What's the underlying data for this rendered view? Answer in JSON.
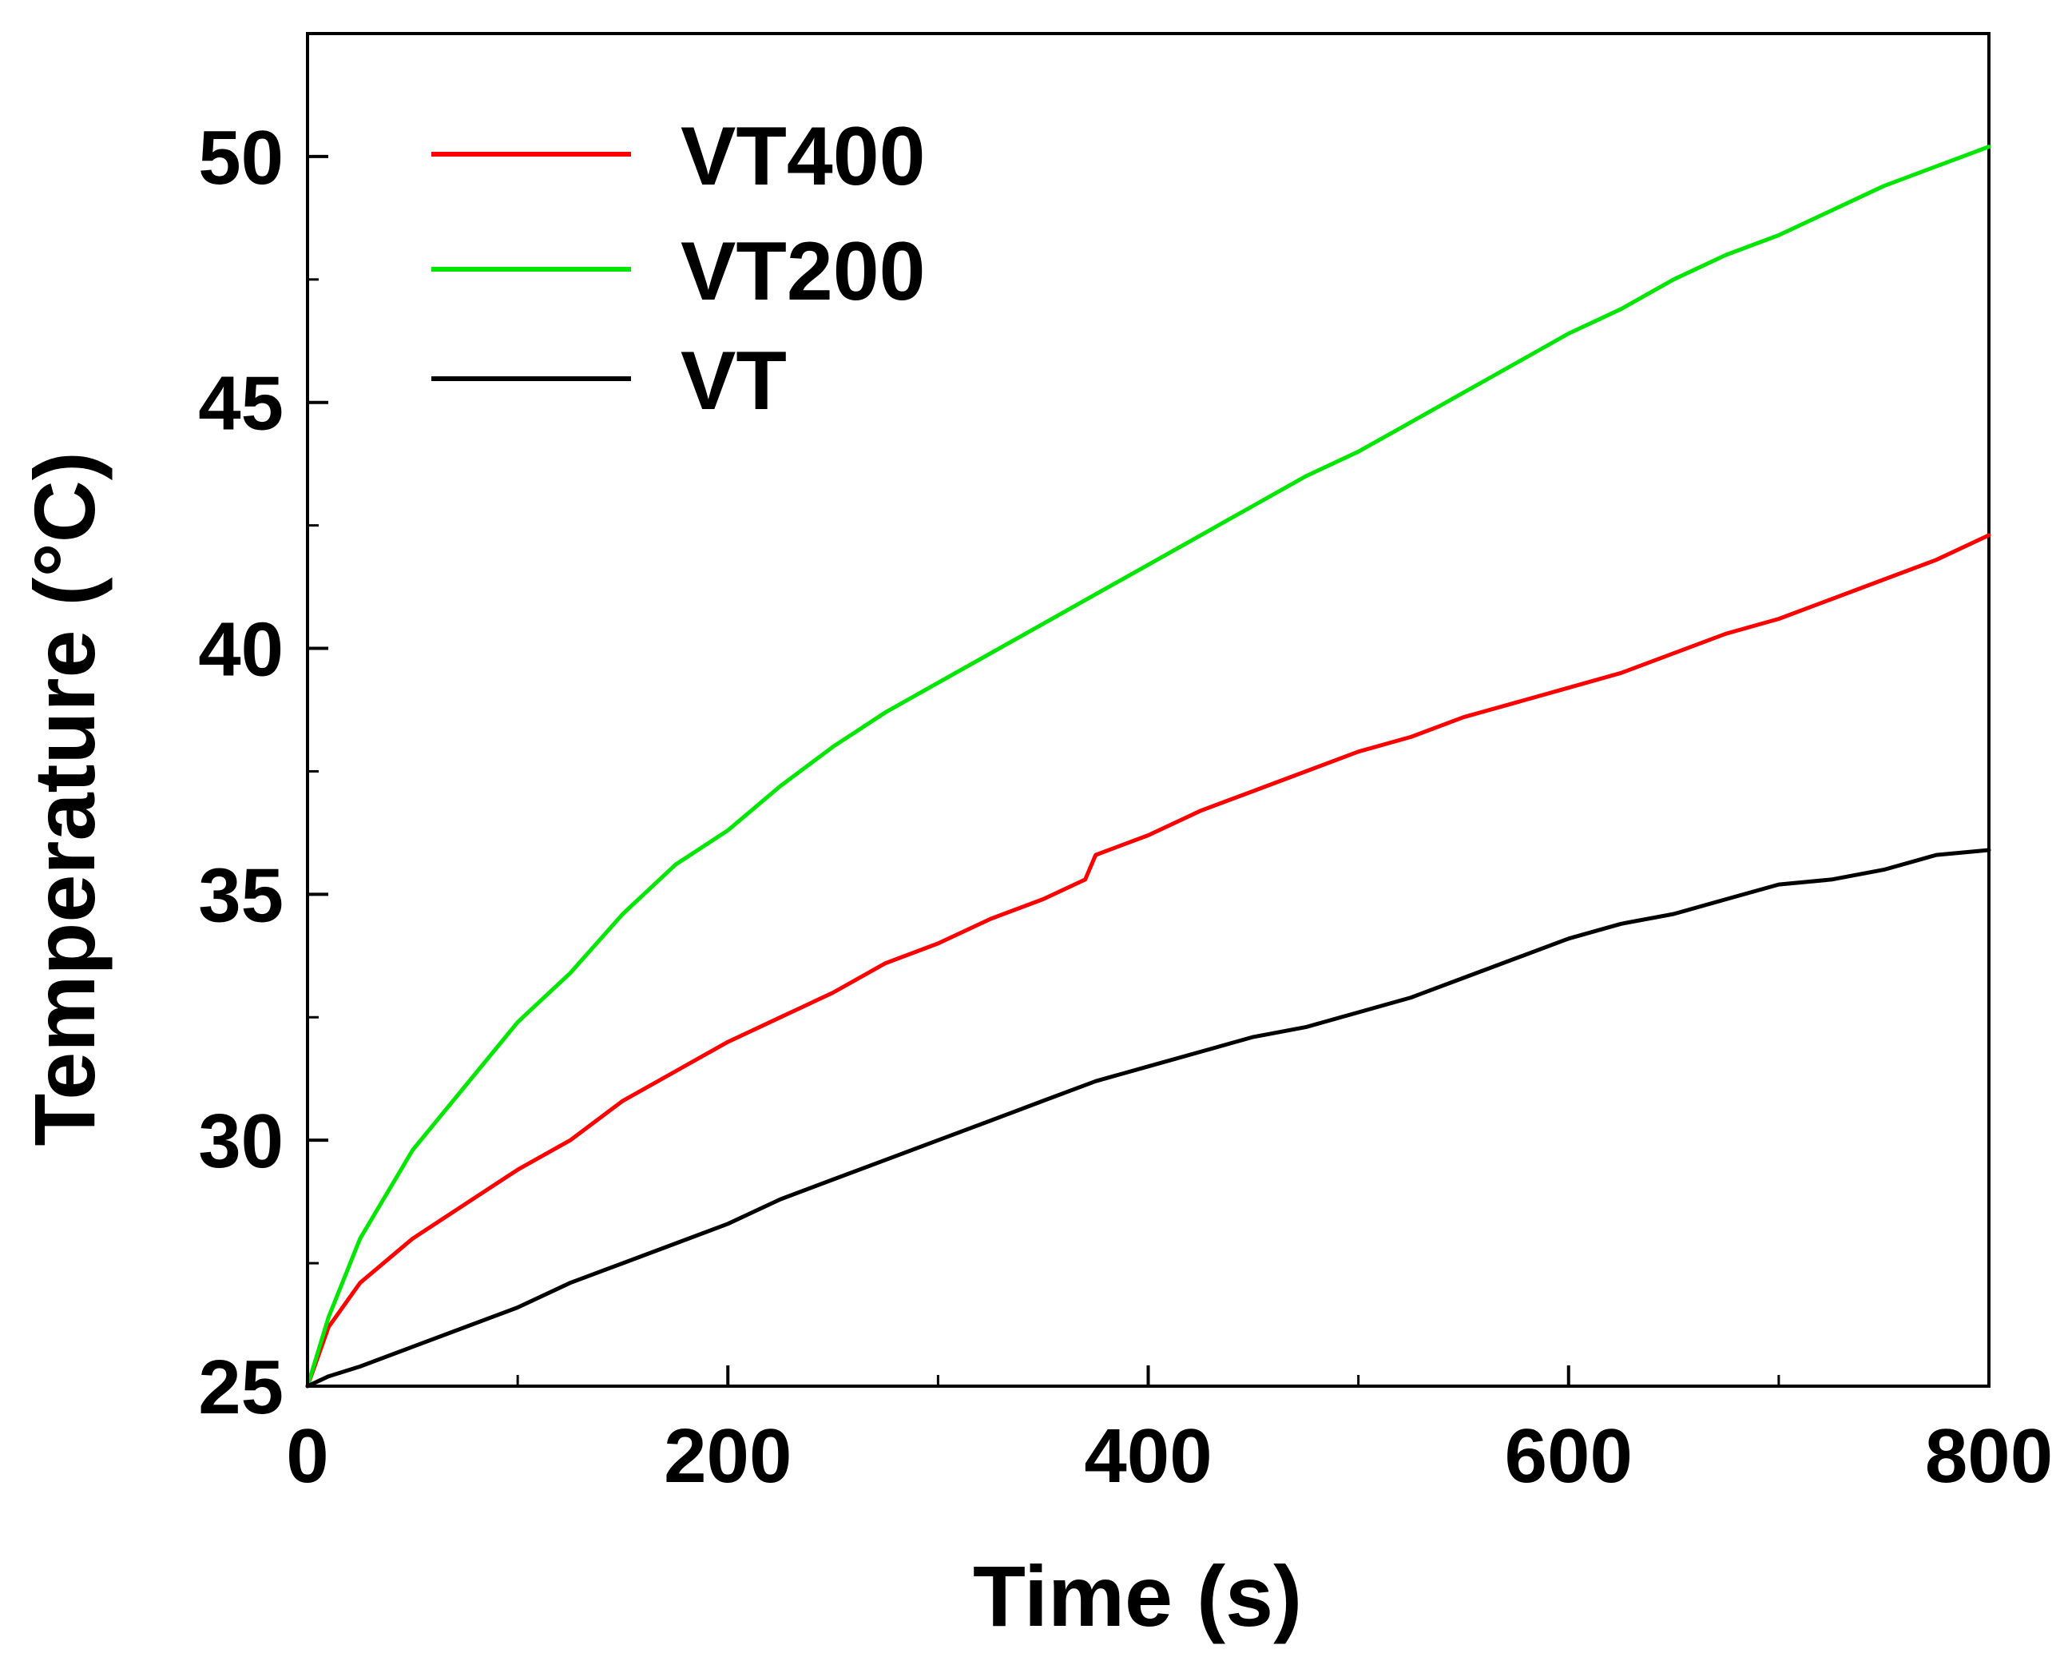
{
  "chart_data": {
    "type": "line",
    "title": "",
    "xlabel": "Time (s)",
    "ylabel": "Temperature (°C)",
    "xlim": [
      0,
      800
    ],
    "ylim": [
      25,
      52.5
    ],
    "xticks": [
      0,
      200,
      400,
      600,
      800
    ],
    "xtick_labels": [
      "0",
      "200",
      "400",
      "600",
      "800"
    ],
    "yticks": [
      25,
      30,
      35,
      40,
      45,
      50
    ],
    "ytick_labels": [
      "25",
      "30",
      "35",
      "40",
      "45",
      "50"
    ],
    "grid": false,
    "legend_position": "top-left",
    "series": [
      {
        "name": "VT400",
        "color": "#ff0000",
        "x": [
          0,
          10,
          25,
          50,
          75,
          100,
          125,
          150,
          175,
          200,
          225,
          250,
          275,
          300,
          325,
          350,
          370,
          375,
          400,
          425,
          450,
          475,
          500,
          525,
          550,
          575,
          600,
          625,
          650,
          675,
          700,
          725,
          750,
          775,
          800
        ],
        "y": [
          25.0,
          26.2,
          27.1,
          28.0,
          28.7,
          29.4,
          30.0,
          30.8,
          31.4,
          32.0,
          32.5,
          33.0,
          33.6,
          34.0,
          34.5,
          34.9,
          35.3,
          35.8,
          36.2,
          36.7,
          37.1,
          37.5,
          37.9,
          38.2,
          38.6,
          38.9,
          39.2,
          39.5,
          39.9,
          40.3,
          40.6,
          41.0,
          41.4,
          41.8,
          42.3
        ]
      },
      {
        "name": "VT200",
        "color": "#00e600",
        "x": [
          0,
          10,
          25,
          50,
          75,
          100,
          125,
          150,
          175,
          200,
          225,
          250,
          275,
          300,
          325,
          350,
          375,
          400,
          425,
          450,
          475,
          500,
          525,
          550,
          575,
          600,
          625,
          650,
          675,
          700,
          725,
          750,
          775,
          800
        ],
        "y": [
          25.0,
          26.4,
          28.0,
          29.8,
          31.1,
          32.4,
          33.4,
          34.6,
          35.6,
          36.3,
          37.2,
          38.0,
          38.7,
          39.3,
          39.9,
          40.5,
          41.1,
          41.7,
          42.3,
          42.9,
          43.5,
          44.0,
          44.6,
          45.2,
          45.8,
          46.4,
          46.9,
          47.5,
          48.0,
          48.4,
          48.9,
          49.4,
          49.8,
          50.2
        ]
      },
      {
        "name": "VT",
        "color": "#000000",
        "x": [
          0,
          10,
          25,
          50,
          75,
          100,
          125,
          150,
          175,
          200,
          225,
          250,
          275,
          300,
          325,
          350,
          375,
          400,
          425,
          450,
          475,
          500,
          525,
          550,
          575,
          600,
          625,
          650,
          675,
          700,
          725,
          750,
          775,
          800
        ],
        "y": [
          25.0,
          25.2,
          25.4,
          25.8,
          26.2,
          26.6,
          27.1,
          27.5,
          27.9,
          28.3,
          28.8,
          29.2,
          29.6,
          30.0,
          30.4,
          30.8,
          31.2,
          31.5,
          31.8,
          32.1,
          32.3,
          32.6,
          32.9,
          33.3,
          33.7,
          34.1,
          34.4,
          34.6,
          34.9,
          35.2,
          35.3,
          35.5,
          35.8,
          35.9
        ]
      }
    ]
  }
}
